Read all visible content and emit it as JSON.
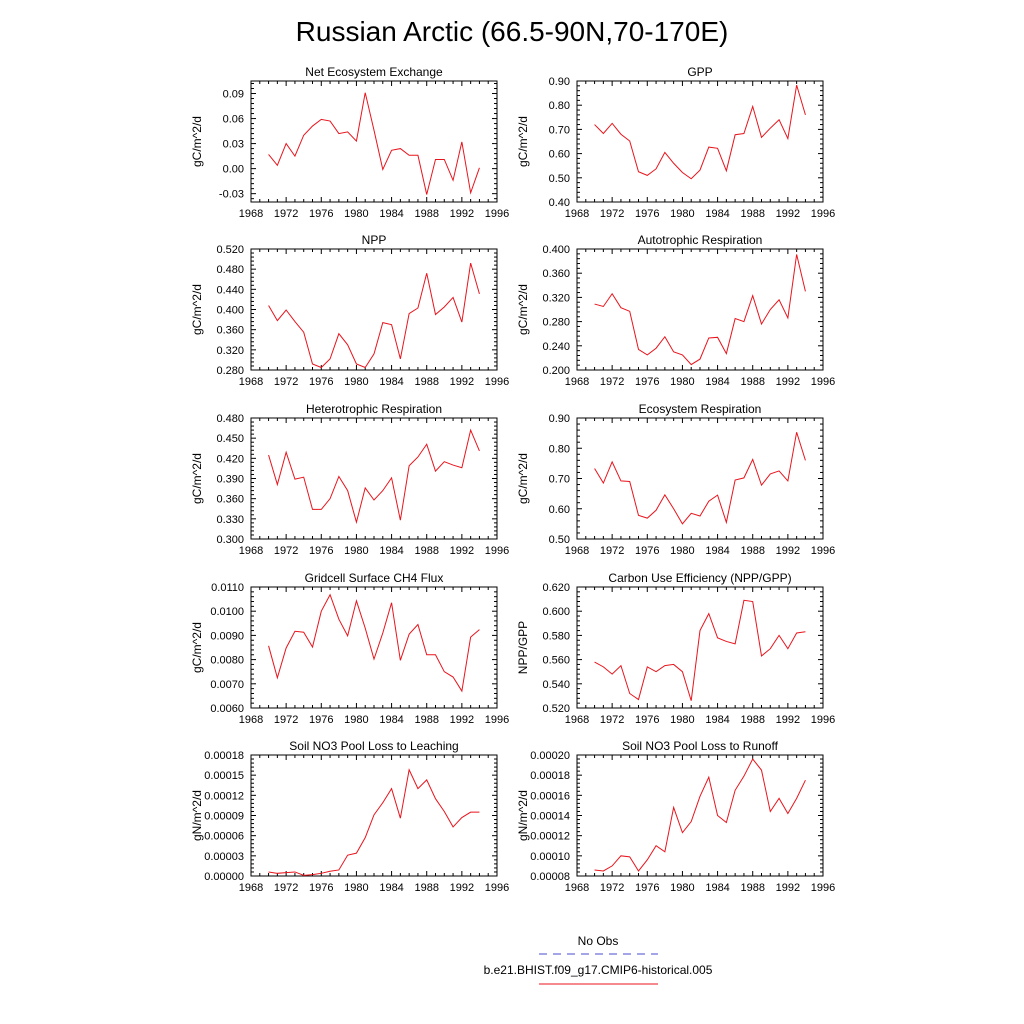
{
  "figure_title": "Russian Arctic (66.5-90N,70-170E)",
  "legend": {
    "entries": [
      {
        "name": "No Obs",
        "color": "#4a4ad0",
        "dash": "8,6"
      },
      {
        "name": "b.e21.BHIST.f09_g17.CMIP6-historical.005",
        "color": "#e8141c",
        "dash": ""
      }
    ]
  },
  "chart_data": [
    {
      "type": "line",
      "title": "Net Ecosystem Exchange",
      "ylabel": "gC/m^2/d",
      "xlim": [
        1968,
        1996
      ],
      "xticks": [
        1968,
        1972,
        1976,
        1980,
        1984,
        1988,
        1992,
        1996
      ],
      "ylim": [
        -0.04,
        0.105
      ],
      "yticks": [
        -0.03,
        0.0,
        0.03,
        0.06,
        0.09
      ],
      "ytick_labels": [
        "-0.03",
        "0.00",
        "0.03",
        "0.06",
        "0.09"
      ],
      "series": [
        {
          "x": [
            1970,
            1971,
            1972,
            1973,
            1974,
            1975,
            1976,
            1977,
            1978,
            1979,
            1980,
            1981,
            1982,
            1983,
            1984,
            1985,
            1986,
            1987,
            1988,
            1989,
            1990,
            1991,
            1992,
            1993,
            1994
          ],
          "y": [
            0.017,
            0.004,
            0.03,
            0.015,
            0.04,
            0.051,
            0.059,
            0.057,
            0.042,
            0.044,
            0.033,
            0.091,
            0.046,
            -0.001,
            0.022,
            0.024,
            0.016,
            0.016,
            -0.031,
            0.011,
            0.011,
            -0.014,
            0.032,
            -0.029,
            0.001
          ]
        }
      ]
    },
    {
      "type": "line",
      "title": "GPP",
      "ylabel": "gC/m^2/d",
      "xlim": [
        1968,
        1996
      ],
      "xticks": [
        1968,
        1972,
        1976,
        1980,
        1984,
        1988,
        1992,
        1996
      ],
      "ylim": [
        0.4,
        0.9
      ],
      "yticks": [
        0.4,
        0.5,
        0.6,
        0.7,
        0.8,
        0.9
      ],
      "ytick_labels": [
        "0.40",
        "0.50",
        "0.60",
        "0.70",
        "0.80",
        "0.90"
      ],
      "series": [
        {
          "x": [
            1970,
            1971,
            1972,
            1973,
            1974,
            1975,
            1976,
            1977,
            1978,
            1979,
            1980,
            1981,
            1982,
            1983,
            1984,
            1985,
            1986,
            1987,
            1988,
            1989,
            1990,
            1991,
            1992,
            1993,
            1994
          ],
          "y": [
            0.72,
            0.683,
            0.725,
            0.68,
            0.652,
            0.525,
            0.51,
            0.537,
            0.605,
            0.56,
            0.522,
            0.496,
            0.532,
            0.627,
            0.622,
            0.529,
            0.678,
            0.683,
            0.795,
            0.667,
            0.705,
            0.74,
            0.662,
            0.883,
            0.76
          ]
        }
      ]
    },
    {
      "type": "line",
      "title": "NPP",
      "ylabel": "gC/m^2/d",
      "xlim": [
        1968,
        1996
      ],
      "xticks": [
        1968,
        1972,
        1976,
        1980,
        1984,
        1988,
        1992,
        1996
      ],
      "ylim": [
        0.28,
        0.52
      ],
      "yticks": [
        0.28,
        0.32,
        0.36,
        0.4,
        0.44,
        0.48,
        0.52
      ],
      "ytick_labels": [
        "0.280",
        "0.320",
        "0.360",
        "0.400",
        "0.440",
        "0.480",
        "0.520"
      ],
      "series": [
        {
          "x": [
            1970,
            1971,
            1972,
            1973,
            1974,
            1975,
            1976,
            1977,
            1978,
            1979,
            1980,
            1981,
            1982,
            1983,
            1984,
            1985,
            1986,
            1987,
            1988,
            1989,
            1990,
            1991,
            1992,
            1993,
            1994
          ],
          "y": [
            0.408,
            0.378,
            0.399,
            0.376,
            0.355,
            0.292,
            0.285,
            0.302,
            0.352,
            0.33,
            0.292,
            0.285,
            0.312,
            0.374,
            0.37,
            0.302,
            0.392,
            0.403,
            0.472,
            0.39,
            0.405,
            0.424,
            0.375,
            0.492,
            0.431
          ]
        }
      ]
    },
    {
      "type": "line",
      "title": "Autotrophic Respiration",
      "ylabel": "gC/m^2/d",
      "xlim": [
        1968,
        1996
      ],
      "xticks": [
        1968,
        1972,
        1976,
        1980,
        1984,
        1988,
        1992,
        1996
      ],
      "ylim": [
        0.2,
        0.4
      ],
      "yticks": [
        0.2,
        0.24,
        0.28,
        0.32,
        0.36,
        0.4
      ],
      "ytick_labels": [
        "0.200",
        "0.240",
        "0.280",
        "0.320",
        "0.360",
        "0.400"
      ],
      "series": [
        {
          "x": [
            1970,
            1971,
            1972,
            1973,
            1974,
            1975,
            1976,
            1977,
            1978,
            1979,
            1980,
            1981,
            1982,
            1983,
            1984,
            1985,
            1986,
            1987,
            1988,
            1989,
            1990,
            1991,
            1992,
            1993,
            1994
          ],
          "y": [
            0.309,
            0.305,
            0.326,
            0.303,
            0.297,
            0.234,
            0.225,
            0.236,
            0.255,
            0.23,
            0.225,
            0.209,
            0.218,
            0.253,
            0.254,
            0.227,
            0.285,
            0.28,
            0.323,
            0.276,
            0.3,
            0.316,
            0.286,
            0.391,
            0.33
          ]
        }
      ]
    },
    {
      "type": "line",
      "title": "Heterotrophic Respiration",
      "ylabel": "gC/m^2/d",
      "xlim": [
        1968,
        1996
      ],
      "xticks": [
        1968,
        1972,
        1976,
        1980,
        1984,
        1988,
        1992,
        1996
      ],
      "ylim": [
        0.3,
        0.48
      ],
      "yticks": [
        0.3,
        0.33,
        0.36,
        0.39,
        0.42,
        0.45,
        0.48
      ],
      "ytick_labels": [
        "0.300",
        "0.330",
        "0.360",
        "0.390",
        "0.420",
        "0.450",
        "0.480"
      ],
      "series": [
        {
          "x": [
            1970,
            1971,
            1972,
            1973,
            1974,
            1975,
            1976,
            1977,
            1978,
            1979,
            1980,
            1981,
            1982,
            1983,
            1984,
            1985,
            1986,
            1987,
            1988,
            1989,
            1990,
            1991,
            1992,
            1993,
            1994
          ],
          "y": [
            0.425,
            0.381,
            0.429,
            0.389,
            0.392,
            0.344,
            0.344,
            0.36,
            0.393,
            0.372,
            0.325,
            0.376,
            0.358,
            0.372,
            0.391,
            0.328,
            0.409,
            0.422,
            0.441,
            0.401,
            0.415,
            0.41,
            0.406,
            0.462,
            0.431
          ]
        }
      ]
    },
    {
      "type": "line",
      "title": "Ecosystem Respiration",
      "ylabel": "gC/m^2/d",
      "xlim": [
        1968,
        1996
      ],
      "xticks": [
        1968,
        1972,
        1976,
        1980,
        1984,
        1988,
        1992,
        1996
      ],
      "ylim": [
        0.5,
        0.9
      ],
      "yticks": [
        0.5,
        0.6,
        0.7,
        0.8,
        0.9
      ],
      "ytick_labels": [
        "0.50",
        "0.60",
        "0.70",
        "0.80",
        "0.90"
      ],
      "series": [
        {
          "x": [
            1970,
            1971,
            1972,
            1973,
            1974,
            1975,
            1976,
            1977,
            1978,
            1979,
            1980,
            1981,
            1982,
            1983,
            1984,
            1985,
            1986,
            1987,
            1988,
            1989,
            1990,
            1991,
            1992,
            1993,
            1994
          ],
          "y": [
            0.733,
            0.685,
            0.755,
            0.692,
            0.69,
            0.578,
            0.569,
            0.595,
            0.646,
            0.6,
            0.55,
            0.585,
            0.576,
            0.625,
            0.645,
            0.555,
            0.695,
            0.702,
            0.763,
            0.678,
            0.715,
            0.725,
            0.692,
            0.853,
            0.76
          ]
        }
      ]
    },
    {
      "type": "line",
      "title": "Gridcell Surface CH4 Flux",
      "ylabel": "gC/m^2/d",
      "xlim": [
        1968,
        1996
      ],
      "xticks": [
        1968,
        1972,
        1976,
        1980,
        1984,
        1988,
        1992,
        1996
      ],
      "ylim": [
        0.006,
        0.011
      ],
      "yticks": [
        0.006,
        0.007,
        0.008,
        0.009,
        0.01,
        0.011
      ],
      "ytick_labels": [
        "0.0060",
        "0.0070",
        "0.0080",
        "0.0090",
        "0.0100",
        "0.0110"
      ],
      "series": [
        {
          "x": [
            1970,
            1971,
            1972,
            1973,
            1974,
            1975,
            1976,
            1977,
            1978,
            1979,
            1980,
            1981,
            1982,
            1983,
            1984,
            1985,
            1986,
            1987,
            1988,
            1989,
            1990,
            1991,
            1992,
            1993,
            1994
          ],
          "y": [
            0.00857,
            0.00725,
            0.00848,
            0.00917,
            0.00913,
            0.00852,
            0.01,
            0.01068,
            0.00967,
            0.00898,
            0.01043,
            0.0093,
            0.00802,
            0.0091,
            0.01035,
            0.00797,
            0.00905,
            0.00945,
            0.0082,
            0.0082,
            0.0075,
            0.00728,
            0.0067,
            0.00893,
            0.00924
          ]
        }
      ]
    },
    {
      "type": "line",
      "title": "Carbon Use Efficiency (NPP/GPP)",
      "ylabel": "NPP/GPP",
      "xlim": [
        1968,
        1996
      ],
      "xticks": [
        1968,
        1972,
        1976,
        1980,
        1984,
        1988,
        1992,
        1996
      ],
      "ylim": [
        0.52,
        0.62
      ],
      "yticks": [
        0.52,
        0.54,
        0.56,
        0.58,
        0.6,
        0.62
      ],
      "ytick_labels": [
        "0.520",
        "0.540",
        "0.560",
        "0.580",
        "0.600",
        "0.620"
      ],
      "series": [
        {
          "x": [
            1970,
            1971,
            1972,
            1973,
            1974,
            1975,
            1976,
            1977,
            1978,
            1979,
            1980,
            1981,
            1982,
            1983,
            1984,
            1985,
            1986,
            1987,
            1988,
            1989,
            1990,
            1991,
            1992,
            1993,
            1994
          ],
          "y": [
            0.558,
            0.554,
            0.548,
            0.555,
            0.532,
            0.527,
            0.554,
            0.55,
            0.555,
            0.556,
            0.55,
            0.526,
            0.584,
            0.598,
            0.578,
            0.575,
            0.573,
            0.609,
            0.608,
            0.563,
            0.569,
            0.58,
            0.569,
            0.582,
            0.583
          ]
        }
      ]
    },
    {
      "type": "line",
      "title": "Soil NO3 Pool Loss to Leaching",
      "ylabel": "gN/m^2/d",
      "xlim": [
        1968,
        1996
      ],
      "xticks": [
        1968,
        1972,
        1976,
        1980,
        1984,
        1988,
        1992,
        1996
      ],
      "ylim": [
        0.0,
        0.00018
      ],
      "yticks": [
        0.0,
        3e-05,
        6e-05,
        9e-05,
        0.00012,
        0.00015,
        0.00018
      ],
      "ytick_labels": [
        "0.00000",
        "0.00003",
        "0.00006",
        "0.00009",
        "0.00012",
        "0.00015",
        "0.00018"
      ],
      "series": [
        {
          "x": [
            1970,
            1971,
            1972,
            1973,
            1974,
            1975,
            1976,
            1977,
            1978,
            1979,
            1980,
            1981,
            1982,
            1983,
            1984,
            1985,
            1986,
            1987,
            1988,
            1989,
            1990,
            1991,
            1992,
            1993,
            1994
          ],
          "y": [
            6e-06,
            4e-06,
            5e-06,
            6e-06,
            1e-06,
            2e-06,
            4e-06,
            7e-06,
            9e-06,
            3.1e-05,
            3.4e-05,
            5.7e-05,
            9.1e-05,
            0.000109,
            0.00013,
            8.6e-05,
            0.000158,
            0.00013,
            0.000143,
            0.000115,
            9.6e-05,
            7.3e-05,
            8.7e-05,
            9.5e-05,
            9.5e-05
          ]
        }
      ]
    },
    {
      "type": "line",
      "title": "Soil NO3 Pool Loss to Runoff",
      "ylabel": "gN/m^2/d",
      "xlim": [
        1968,
        1996
      ],
      "xticks": [
        1968,
        1972,
        1976,
        1980,
        1984,
        1988,
        1992,
        1996
      ],
      "ylim": [
        8e-05,
        0.0002
      ],
      "yticks": [
        8e-05,
        0.0001,
        0.00012,
        0.00014,
        0.00016,
        0.00018,
        0.0002
      ],
      "ytick_labels": [
        "0.00008",
        "0.00010",
        "0.00012",
        "0.00014",
        "0.00016",
        "0.00018",
        "0.00020"
      ],
      "series": [
        {
          "x": [
            1970,
            1971,
            1972,
            1973,
            1974,
            1975,
            1976,
            1977,
            1978,
            1979,
            1980,
            1981,
            1982,
            1983,
            1984,
            1985,
            1986,
            1987,
            1988,
            1989,
            1990,
            1991,
            1992,
            1993,
            1994
          ],
          "y": [
            8.6e-05,
            8.5e-05,
            9e-05,
            0.0001,
            9.9e-05,
            8.5e-05,
            9.6e-05,
            0.00011,
            0.000104,
            0.000148,
            0.000123,
            0.000134,
            0.000159,
            0.000178,
            0.00014,
            0.000133,
            0.000165,
            0.000179,
            0.000196,
            0.000185,
            0.000144,
            0.000157,
            0.000142,
            0.000157,
            0.000175
          ]
        }
      ]
    }
  ]
}
